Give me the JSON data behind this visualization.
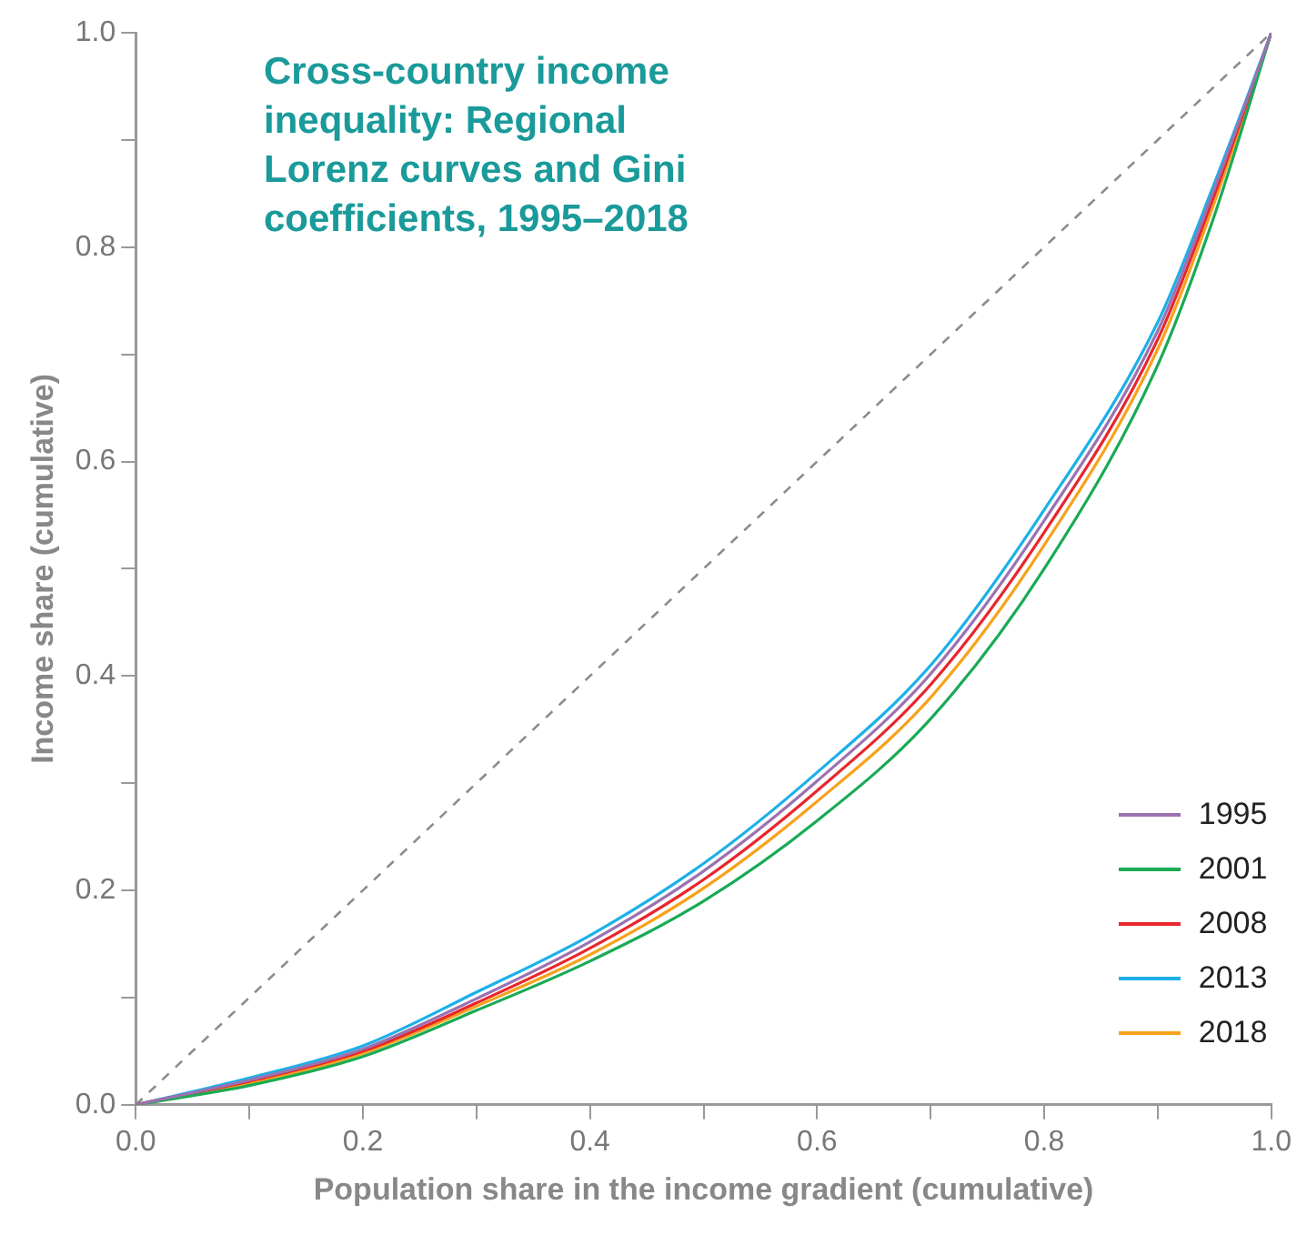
{
  "chart_data": {
    "type": "line",
    "title": "Cross-country income inequality: Regional Lorenz curves and Gini coefficients, 1995–2018",
    "xlabel": "Population share in the income gradient (cumulative)",
    "ylabel": "Income share (cumulative)",
    "x": [
      0,
      0.1,
      0.2,
      0.3,
      0.4,
      0.5,
      0.6,
      0.7,
      0.8,
      0.9,
      0.95,
      1
    ],
    "series": [
      {
        "name": "1995",
        "color": "#9b72b0",
        "values": [
          0,
          0.023,
          0.052,
          0.099,
          0.152,
          0.218,
          0.302,
          0.402,
          0.545,
          0.722,
          0.855,
          1
        ]
      },
      {
        "name": "2001",
        "color": "#1aaa55",
        "values": [
          0,
          0.018,
          0.045,
          0.088,
          0.134,
          0.19,
          0.265,
          0.36,
          0.5,
          0.69,
          0.83,
          1
        ]
      },
      {
        "name": "2008",
        "color": "#e8262c",
        "values": [
          0,
          0.022,
          0.05,
          0.095,
          0.146,
          0.21,
          0.293,
          0.392,
          0.534,
          0.714,
          0.849,
          1
        ]
      },
      {
        "name": "2013",
        "color": "#1cb0e8",
        "values": [
          0,
          0.025,
          0.055,
          0.105,
          0.158,
          0.225,
          0.31,
          0.41,
          0.555,
          0.73,
          0.86,
          1
        ]
      },
      {
        "name": "2018",
        "color": "#f7a21b",
        "values": [
          0,
          0.02,
          0.048,
          0.092,
          0.14,
          0.202,
          0.283,
          0.38,
          0.522,
          0.705,
          0.842,
          1
        ]
      },
      {
        "color": "#8c8c8c",
        "line_style": "dashed",
        "x": [
          0,
          1
        ],
        "values": [
          0,
          1
        ]
      }
    ],
    "xlim": [
      0,
      1
    ],
    "ylim": [
      0,
      1
    ],
    "xticks": [
      {
        "value": 0,
        "label": "0.0"
      },
      {
        "value": 0.1,
        "label": null
      },
      {
        "value": 0.2,
        "label": "0.2"
      },
      {
        "value": 0.3,
        "label": null
      },
      {
        "value": 0.4,
        "label": "0.4"
      },
      {
        "value": 0.5,
        "label": null
      },
      {
        "value": 0.6,
        "label": "0.6"
      },
      {
        "value": 0.7,
        "label": null
      },
      {
        "value": 0.8,
        "label": "0.8"
      },
      {
        "value": 0.9,
        "label": null
      },
      {
        "value": 1,
        "label": "1.0"
      }
    ],
    "yticks": [
      {
        "value": 0,
        "label": "0.0"
      },
      {
        "value": 0.1,
        "label": null
      },
      {
        "value": 0.2,
        "label": "0.2"
      },
      {
        "value": 0.3,
        "label": null
      },
      {
        "value": 0.4,
        "label": "0.4"
      },
      {
        "value": 0.5,
        "label": null
      },
      {
        "value": 0.6,
        "label": "0.6"
      },
      {
        "value": 0.7,
        "label": null
      },
      {
        "value": 0.8,
        "label": "0.8"
      },
      {
        "value": 0.9,
        "label": null
      },
      {
        "value": 1,
        "label": "1.0"
      }
    ],
    "grid": false,
    "legend": "bottom right",
    "marker": "none",
    "line_style": "solid"
  }
}
